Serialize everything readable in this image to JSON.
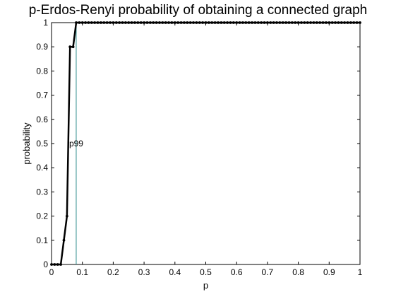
{
  "chart_data": {
    "type": "line",
    "title": "p-Erdos-Renyi probability of obtaining a connected graph",
    "xlabel": "p",
    "ylabel": "probability",
    "xlim": [
      0,
      1
    ],
    "ylim": [
      0,
      1
    ],
    "xticks": [
      "0",
      "0.1",
      "0.2",
      "0.3",
      "0.4",
      "0.5",
      "0.6",
      "0.7",
      "0.8",
      "0.9",
      "1"
    ],
    "yticks": [
      "0",
      "0.1",
      "0.2",
      "0.3",
      "0.4",
      "0.5",
      "0.6",
      "0.7",
      "0.8",
      "0.9",
      "1"
    ],
    "grid": false,
    "series": [
      {
        "color": "#000000",
        "x": [
          0,
          0.01,
          0.02,
          0.03,
          0.04,
          0.05,
          0.06,
          0.07,
          0.08,
          0.09,
          0.1,
          0.11,
          0.12,
          0.13,
          0.14,
          0.15,
          0.16,
          0.17,
          0.18,
          0.19,
          0.2,
          0.21,
          0.22,
          0.23,
          0.24,
          0.25,
          0.26,
          0.27,
          0.28,
          0.29,
          0.3,
          0.31,
          0.32,
          0.33,
          0.34,
          0.35,
          0.36,
          0.37,
          0.38,
          0.39,
          0.4,
          0.41,
          0.42,
          0.43,
          0.44,
          0.45,
          0.46,
          0.47,
          0.48,
          0.49,
          0.5,
          0.51,
          0.52,
          0.53,
          0.54,
          0.55,
          0.56,
          0.57,
          0.58,
          0.59,
          0.6,
          0.61,
          0.62,
          0.63,
          0.64,
          0.65,
          0.66,
          0.67,
          0.68,
          0.69,
          0.7,
          0.71,
          0.72,
          0.73,
          0.74,
          0.75,
          0.76,
          0.77,
          0.78,
          0.79,
          0.8,
          0.81,
          0.82,
          0.83,
          0.84,
          0.85,
          0.86,
          0.87,
          0.88,
          0.89,
          0.9,
          0.91,
          0.92,
          0.93,
          0.94,
          0.95,
          0.96,
          0.97,
          0.98,
          0.99,
          1
        ],
        "y": [
          0,
          0,
          0,
          0,
          0.1,
          0.2,
          0.9,
          0.9,
          1,
          1,
          1,
          1,
          1,
          1,
          1,
          1,
          1,
          1,
          1,
          1,
          1,
          1,
          1,
          1,
          1,
          1,
          1,
          1,
          1,
          1,
          1,
          1,
          1,
          1,
          1,
          1,
          1,
          1,
          1,
          1,
          1,
          1,
          1,
          1,
          1,
          1,
          1,
          1,
          1,
          1,
          1,
          1,
          1,
          1,
          1,
          1,
          1,
          1,
          1,
          1,
          1,
          1,
          1,
          1,
          1,
          1,
          1,
          1,
          1,
          1,
          1,
          1,
          1,
          1,
          1,
          1,
          1,
          1,
          1,
          1,
          1,
          1,
          1,
          1,
          1,
          1,
          1,
          1,
          1,
          1,
          1,
          1,
          1,
          1,
          1,
          1,
          1,
          1,
          1,
          1,
          1
        ]
      }
    ],
    "vline": {
      "x": 0.08,
      "color": "#2e8b8b",
      "label": "p99",
      "label_y": 0.5
    }
  }
}
